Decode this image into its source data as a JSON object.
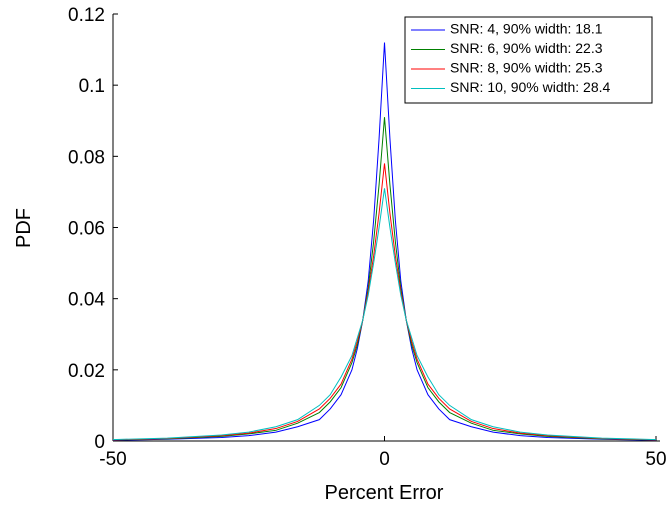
{
  "chart_data": {
    "type": "line",
    "xlabel": "Percent Error",
    "ylabel": "PDF",
    "x": [
      -50,
      -40,
      -30,
      -25,
      -20,
      -16,
      -12,
      -10,
      -8,
      -6,
      -5,
      -4,
      -3,
      -2,
      -1,
      0,
      1,
      2,
      3,
      4,
      5,
      6,
      8,
      10,
      12,
      16,
      20,
      25,
      30,
      40,
      50
    ],
    "series": [
      {
        "name": "SNR: 4, 90% width: 18.1",
        "color": "#0000ff",
        "values": [
          0.0002,
          0.0005,
          0.001,
          0.0015,
          0.0025,
          0.004,
          0.006,
          0.009,
          0.013,
          0.02,
          0.026,
          0.034,
          0.045,
          0.062,
          0.085,
          0.112,
          0.085,
          0.062,
          0.045,
          0.034,
          0.026,
          0.02,
          0.013,
          0.009,
          0.006,
          0.004,
          0.0025,
          0.0015,
          0.001,
          0.0005,
          0.0002
        ]
      },
      {
        "name": "SNR: 6, 90% width: 22.3",
        "color": "#008000",
        "values": [
          0.0003,
          0.0006,
          0.0013,
          0.002,
          0.003,
          0.005,
          0.008,
          0.011,
          0.015,
          0.022,
          0.027,
          0.034,
          0.043,
          0.056,
          0.072,
          0.091,
          0.072,
          0.056,
          0.043,
          0.034,
          0.027,
          0.022,
          0.015,
          0.011,
          0.008,
          0.005,
          0.003,
          0.002,
          0.0013,
          0.0006,
          0.0003
        ]
      },
      {
        "name": "SNR: 8, 90% width: 25.3",
        "color": "#ff0000",
        "values": [
          0.0003,
          0.0007,
          0.0015,
          0.0022,
          0.0035,
          0.0055,
          0.009,
          0.012,
          0.016,
          0.023,
          0.028,
          0.034,
          0.042,
          0.052,
          0.064,
          0.078,
          0.064,
          0.052,
          0.042,
          0.034,
          0.028,
          0.023,
          0.016,
          0.012,
          0.009,
          0.0055,
          0.0035,
          0.0022,
          0.0015,
          0.0007,
          0.0003
        ]
      },
      {
        "name": "SNR: 10, 90% width: 28.4",
        "color": "#00bfbf",
        "values": [
          0.0004,
          0.0008,
          0.0017,
          0.0025,
          0.004,
          0.006,
          0.01,
          0.013,
          0.018,
          0.024,
          0.029,
          0.034,
          0.041,
          0.05,
          0.06,
          0.071,
          0.06,
          0.05,
          0.041,
          0.034,
          0.029,
          0.024,
          0.018,
          0.013,
          0.01,
          0.006,
          0.004,
          0.0025,
          0.0017,
          0.0008,
          0.0004
        ]
      }
    ],
    "xlim": [
      -50,
      50
    ],
    "xticks": [
      -50,
      0,
      50
    ],
    "ylim": [
      0,
      0.12
    ],
    "yticks": [
      0,
      0.02,
      0.04,
      0.06,
      0.08,
      0.1,
      0.12
    ],
    "grid": false,
    "legend": "top-right"
  }
}
